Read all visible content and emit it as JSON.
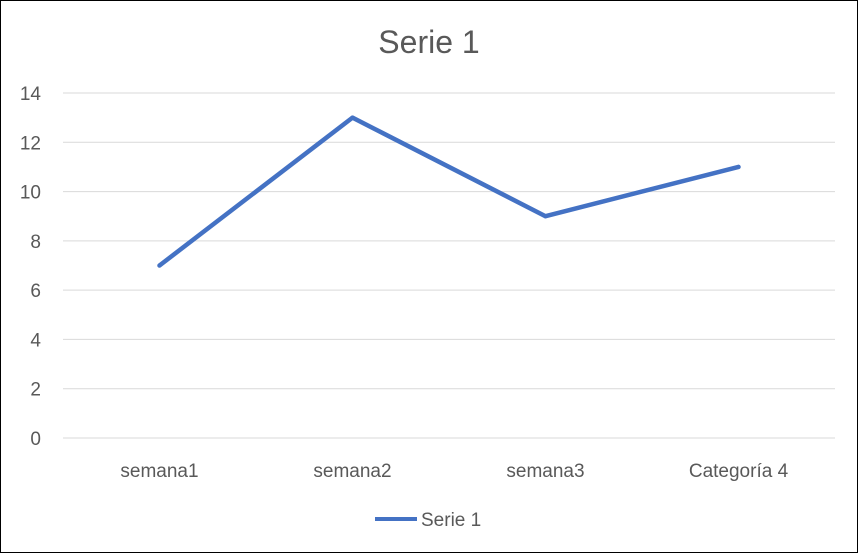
{
  "chart_data": {
    "type": "line",
    "title": "Serie 1",
    "categories": [
      "semana1",
      "semana2",
      "semana3",
      "Categoría 4"
    ],
    "series": [
      {
        "name": "Serie 1",
        "values": [
          7,
          13,
          9,
          11
        ],
        "color": "#4472C4"
      }
    ],
    "ylim": [
      0,
      14
    ],
    "yticks": [
      0,
      2,
      4,
      6,
      8,
      10,
      12,
      14
    ],
    "grid": true,
    "legend": "bottom"
  }
}
